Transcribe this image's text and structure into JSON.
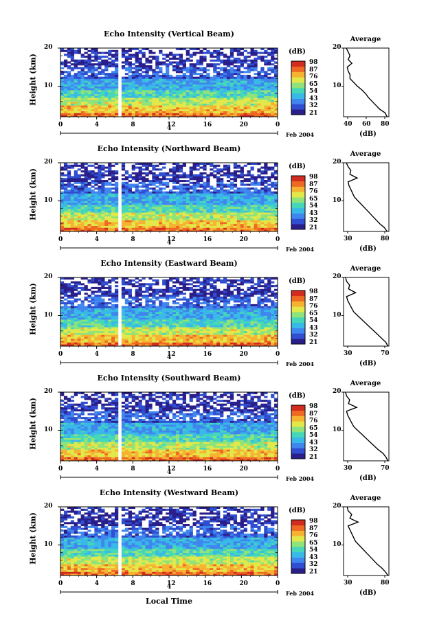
{
  "colorbar": {
    "unit": "(dB)",
    "labels": [
      "98",
      "87",
      "76",
      "65",
      "54",
      "43",
      "32",
      "21"
    ],
    "colors": [
      "#2a1f8a",
      "#2f4fd0",
      "#3f86ee",
      "#39b9e8",
      "#45d7b8",
      "#8fe37a",
      "#e3e84a",
      "#f6b332",
      "#ee6a23",
      "#d22b1f"
    ]
  },
  "footer": {
    "xlabel": "Local Time"
  },
  "panels": [
    {
      "title": "Echo Intensity (Vertical Beam)",
      "ylabel": "Height (km)",
      "yticks": [
        "20",
        "10"
      ],
      "xticks": [
        "0",
        "4",
        "8",
        "12",
        "16",
        "20",
        "0"
      ],
      "date_day": "4",
      "date_text": "Feb 2004",
      "avg_title": "Average",
      "avg_xticks": [
        "40",
        "60",
        "80"
      ],
      "avg_xlabel": "(dB)",
      "avg_yticks": [
        "20",
        "10"
      ]
    },
    {
      "title": "Echo Intensity (Northward Beam)",
      "ylabel": "Height (km)",
      "yticks": [
        "20",
        "10"
      ],
      "xticks": [
        "0",
        "4",
        "8",
        "12",
        "16",
        "20",
        "0"
      ],
      "date_day": "4",
      "date_text": "Feb 2004",
      "avg_title": "Average",
      "avg_xticks": [
        "30",
        "80"
      ],
      "avg_xlabel": "(dB)",
      "avg_yticks": [
        "20",
        "10"
      ]
    },
    {
      "title": "Echo Intensity (Eastward Beam)",
      "ylabel": "Height (km)",
      "yticks": [
        "20",
        "10"
      ],
      "xticks": [
        "0",
        "4",
        "8",
        "12",
        "16",
        "20",
        "0"
      ],
      "date_day": "4",
      "date_text": "Feb 2004",
      "avg_title": "Average",
      "avg_xticks": [
        "30",
        "70"
      ],
      "avg_xlabel": "(dB)",
      "avg_yticks": [
        "20",
        "10"
      ]
    },
    {
      "title": "Echo Intensity (Southward Beam)",
      "ylabel": "Height (km)",
      "yticks": [
        "20",
        "10"
      ],
      "xticks": [
        "0",
        "4",
        "8",
        "12",
        "16",
        "20",
        "0"
      ],
      "date_day": "4",
      "date_text": "Feb 2004",
      "avg_title": "Average",
      "avg_xticks": [
        "30",
        "70"
      ],
      "avg_xlabel": "(dB)",
      "avg_yticks": [
        "20",
        "10"
      ]
    },
    {
      "title": "Echo Intensity (Westward Beam)",
      "ylabel": "Height (km)",
      "yticks": [
        "20",
        "10"
      ],
      "xticks": [
        "0",
        "4",
        "8",
        "12",
        "16",
        "20",
        "0"
      ],
      "date_day": "4",
      "date_text": "Feb 2004",
      "avg_title": "Average",
      "avg_xticks": [
        "30",
        "80"
      ],
      "avg_xlabel": "(dB)",
      "avg_yticks": [
        "20",
        "10"
      ]
    }
  ],
  "chart_data": [
    {
      "type": "heatmap",
      "title": "Echo Intensity (Vertical Beam)",
      "ylabel": "Height (km)",
      "xlim": [
        0,
        24
      ],
      "ylim": [
        2,
        20
      ],
      "clim": [
        21,
        98
      ],
      "avg_profile": {
        "type": "line",
        "title": "Average",
        "xlabel": "(dB)",
        "xlim": [
          33,
          82
        ],
        "ylim": [
          2,
          20
        ],
        "y": [
          2,
          3,
          4,
          5,
          6,
          7,
          8,
          9,
          10,
          11,
          12,
          13,
          14,
          15,
          16,
          17,
          18,
          19,
          20
        ],
        "x": [
          80,
          78,
          72,
          68,
          64,
          60,
          57,
          53,
          48,
          44,
          40,
          40,
          38,
          37,
          42,
          38,
          40,
          38,
          36
        ]
      }
    },
    {
      "type": "heatmap",
      "title": "Echo Intensity (Northward Beam)",
      "ylabel": "Height (km)",
      "xlim": [
        0,
        24
      ],
      "ylim": [
        2,
        20
      ],
      "clim": [
        21,
        98
      ],
      "avg_profile": {
        "type": "line",
        "title": "Average",
        "xlabel": "(dB)",
        "xlim": [
          30,
          80
        ],
        "ylim": [
          2,
          20
        ],
        "y": [
          2,
          3,
          4,
          5,
          6,
          7,
          8,
          9,
          10,
          11,
          12,
          13,
          14,
          15,
          16,
          17,
          18,
          19,
          20
        ],
        "x": [
          78,
          75,
          70,
          66,
          62,
          58,
          54,
          50,
          46,
          42,
          40,
          38,
          36,
          35,
          45,
          37,
          38,
          35,
          33
        ]
      }
    },
    {
      "type": "heatmap",
      "title": "Echo Intensity (Eastward Beam)",
      "ylabel": "Height (km)",
      "xlim": [
        0,
        24
      ],
      "ylim": [
        2,
        20
      ],
      "clim": [
        21,
        98
      ],
      "avg_profile": {
        "type": "line",
        "title": "Average",
        "xlabel": "(dB)",
        "xlim": [
          30,
          75
        ],
        "ylim": [
          2,
          20
        ],
        "y": [
          2,
          3,
          4,
          5,
          6,
          7,
          8,
          9,
          10,
          11,
          12,
          13,
          14,
          15,
          16,
          17,
          18,
          19,
          20
        ],
        "x": [
          74,
          72,
          68,
          64,
          60,
          56,
          52,
          48,
          44,
          40,
          38,
          36,
          34,
          33,
          42,
          35,
          36,
          33,
          32
        ]
      }
    },
    {
      "type": "heatmap",
      "title": "Echo Intensity (Southward Beam)",
      "ylabel": "Height (km)",
      "xlim": [
        0,
        24
      ],
      "ylim": [
        2,
        20
      ],
      "clim": [
        21,
        98
      ],
      "avg_profile": {
        "type": "line",
        "title": "Average",
        "xlabel": "(dB)",
        "xlim": [
          30,
          75
        ],
        "ylim": [
          2,
          20
        ],
        "y": [
          2,
          3,
          4,
          5,
          6,
          7,
          8,
          9,
          10,
          11,
          12,
          13,
          14,
          15,
          16,
          17,
          18,
          19,
          20
        ],
        "x": [
          74,
          72,
          69,
          64,
          60,
          56,
          52,
          48,
          44,
          40,
          38,
          36,
          34,
          33,
          43,
          35,
          36,
          33,
          32
        ]
      }
    },
    {
      "type": "heatmap",
      "title": "Echo Intensity (Westward Beam)",
      "ylabel": "Height (km)",
      "xlim": [
        0,
        24
      ],
      "ylim": [
        2,
        20
      ],
      "clim": [
        21,
        98
      ],
      "avg_profile": {
        "type": "line",
        "title": "Average",
        "xlabel": "(dB)",
        "xlim": [
          30,
          80
        ],
        "ylim": [
          2,
          20
        ],
        "y": [
          2,
          3,
          4,
          5,
          6,
          7,
          8,
          9,
          10,
          11,
          12,
          13,
          14,
          15,
          16,
          17,
          18,
          19,
          20
        ],
        "x": [
          79,
          76,
          72,
          67,
          63,
          59,
          55,
          51,
          47,
          43,
          41,
          39,
          37,
          35,
          46,
          37,
          39,
          35,
          34
        ]
      }
    }
  ]
}
